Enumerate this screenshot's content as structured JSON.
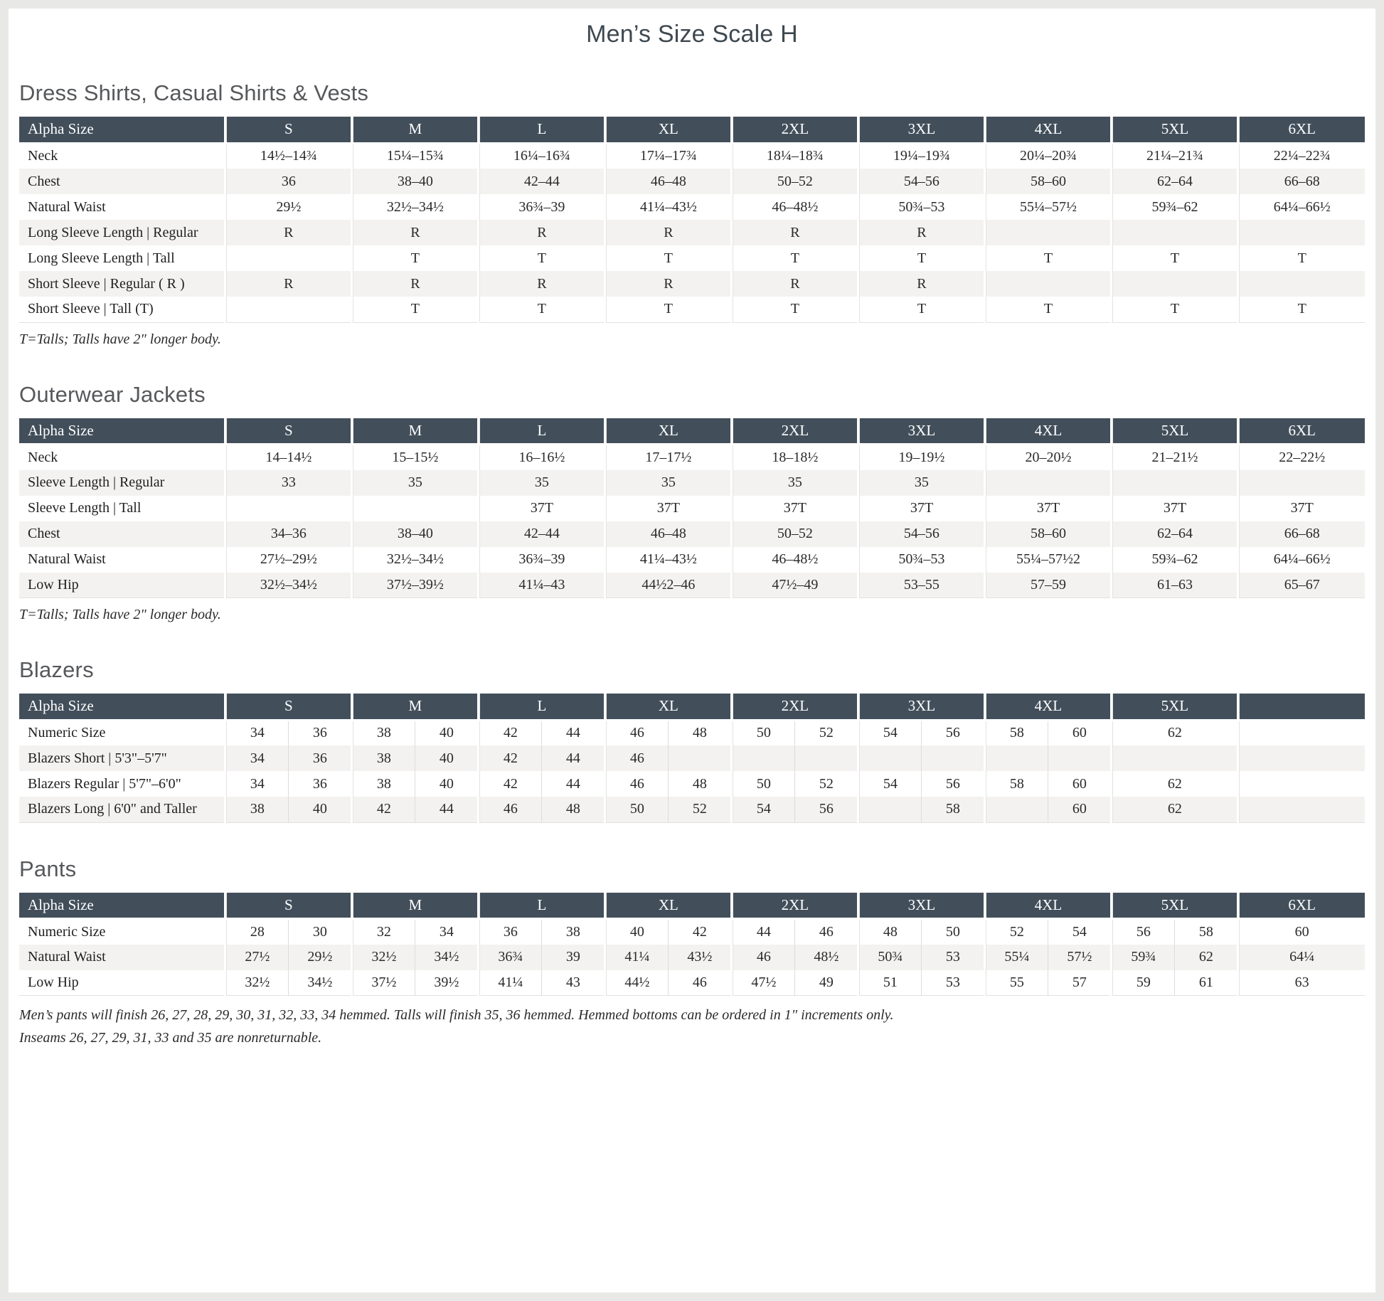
{
  "page": {
    "title": "Men’s Size Scale H"
  },
  "theme": {
    "header_bg": "#424f5b",
    "row_alt": "#f3f2f0",
    "frame_color": "#e8e8e7",
    "title_color": "#3e4850",
    "heading_color": "#56585b"
  },
  "tables": [
    {
      "id": "dress-shirts",
      "heading": "Dress Shirts, Casual Shirts & Vests",
      "split": false,
      "columns": [
        "Alpha Size",
        "S",
        "M",
        "L",
        "XL",
        "2XL",
        "3XL",
        "4XL",
        "5XL",
        "6XL"
      ],
      "rows": [
        {
          "label": "Neck",
          "values": [
            "14½–14¾",
            "15¼–15¾",
            "16¼–16¾",
            "17¼–17¾",
            "18¼–18¾",
            "19¼–19¾",
            "20¼–20¾",
            "21¼–21¾",
            "22¼–22¾"
          ]
        },
        {
          "label": "Chest",
          "values": [
            "36",
            "38–40",
            "42–44",
            "46–48",
            "50–52",
            "54–56",
            "58–60",
            "62–64",
            "66–68"
          ]
        },
        {
          "label": "Natural Waist",
          "values": [
            "29½",
            "32½–34½",
            "36¾–39",
            "41¼–43½",
            "46–48½",
            "50¾–53",
            "55¼–57½",
            "59¾–62",
            "64¼–66½"
          ]
        },
        {
          "label": "Long Sleeve Length | Regular",
          "values": [
            "R",
            "R",
            "R",
            "R",
            "R",
            "R",
            "",
            "",
            ""
          ]
        },
        {
          "label": "Long Sleeve Length | Tall",
          "values": [
            "",
            "T",
            "T",
            "T",
            "T",
            "T",
            "T",
            "T",
            "T"
          ]
        },
        {
          "label": "Short Sleeve | Regular ( R )",
          "values": [
            "R",
            "R",
            "R",
            "R",
            "R",
            "R",
            "",
            "",
            ""
          ]
        },
        {
          "label": "Short Sleeve | Tall (T)",
          "values": [
            "",
            "T",
            "T",
            "T",
            "T",
            "T",
            "T",
            "T",
            "T"
          ]
        }
      ],
      "footnotes": [
        "T=Talls; Talls have 2\" longer body."
      ]
    },
    {
      "id": "outerwear-jackets",
      "heading": "Outerwear Jackets",
      "split": false,
      "columns": [
        "Alpha Size",
        "S",
        "M",
        "L",
        "XL",
        "2XL",
        "3XL",
        "4XL",
        "5XL",
        "6XL"
      ],
      "rows": [
        {
          "label": "Neck",
          "values": [
            "14–14½",
            "15–15½",
            "16–16½",
            "17–17½",
            "18–18½",
            "19–19½",
            "20–20½",
            "21–21½",
            "22–22½"
          ]
        },
        {
          "label": "Sleeve Length | Regular",
          "values": [
            "33",
            "35",
            "35",
            "35",
            "35",
            "35",
            "",
            "",
            ""
          ]
        },
        {
          "label": "Sleeve Length | Tall",
          "values": [
            "",
            "",
            "37T",
            "37T",
            "37T",
            "37T",
            "37T",
            "37T",
            "37T"
          ]
        },
        {
          "label": "Chest",
          "values": [
            "34–36",
            "38–40",
            "42–44",
            "46–48",
            "50–52",
            "54–56",
            "58–60",
            "62–64",
            "66–68"
          ]
        },
        {
          "label": "Natural Waist",
          "values": [
            "27½–29½",
            "32½–34½",
            "36¾–39",
            "41¼–43½",
            "46–48½",
            "50¾–53",
            "55¼–57½2",
            "59¾–62",
            "64¼–66½"
          ]
        },
        {
          "label": "Low Hip",
          "values": [
            "32½–34½",
            "37½–39½",
            "41¼–43",
            "44½2–46",
            "47½–49",
            "53–55",
            "57–59",
            "61–63",
            "65–67"
          ]
        }
      ],
      "footnotes": [
        "T=Talls; Talls have 2\" longer body."
      ]
    },
    {
      "id": "blazers",
      "heading": "Blazers",
      "split": true,
      "columns": [
        "Alpha Size",
        "S",
        "M",
        "L",
        "XL",
        "2XL",
        "3XL",
        "4XL",
        "5XL",
        ""
      ],
      "rows": [
        {
          "label": "Numeric Size",
          "pairs": [
            [
              "34",
              "36"
            ],
            [
              "38",
              "40"
            ],
            [
              "42",
              "44"
            ],
            [
              "46",
              "48"
            ],
            [
              "50",
              "52"
            ],
            [
              "54",
              "56"
            ],
            [
              "58",
              "60"
            ],
            [
              "62"
            ],
            [
              ""
            ]
          ]
        },
        {
          "label": "Blazers Short | 5'3\"–5'7\"",
          "pairs": [
            [
              "34",
              "36"
            ],
            [
              "38",
              "40"
            ],
            [
              "42",
              "44"
            ],
            [
              "46",
              ""
            ],
            [
              "",
              ""
            ],
            [
              "",
              ""
            ],
            [
              "",
              ""
            ],
            [
              ""
            ],
            [
              ""
            ]
          ]
        },
        {
          "label": "Blazers Regular | 5'7\"–6'0\"",
          "pairs": [
            [
              "34",
              "36"
            ],
            [
              "38",
              "40"
            ],
            [
              "42",
              "44"
            ],
            [
              "46",
              "48"
            ],
            [
              "50",
              "52"
            ],
            [
              "54",
              "56"
            ],
            [
              "58",
              "60"
            ],
            [
              "62"
            ],
            [
              ""
            ]
          ]
        },
        {
          "label": "Blazers Long | 6'0\" and Taller",
          "pairs": [
            [
              "38",
              "40"
            ],
            [
              "42",
              "44"
            ],
            [
              "46",
              "48"
            ],
            [
              "50",
              "52"
            ],
            [
              "54",
              "56"
            ],
            [
              "",
              "58"
            ],
            [
              "",
              "60"
            ],
            [
              "62"
            ],
            [
              ""
            ]
          ]
        }
      ],
      "footnotes": []
    },
    {
      "id": "pants",
      "heading": "Pants",
      "split": true,
      "columns": [
        "Alpha Size",
        "S",
        "M",
        "L",
        "XL",
        "2XL",
        "3XL",
        "4XL",
        "5XL",
        "6XL"
      ],
      "rows": [
        {
          "label": "Numeric Size",
          "pairs": [
            [
              "28",
              "30"
            ],
            [
              "32",
              "34"
            ],
            [
              "36",
              "38"
            ],
            [
              "40",
              "42"
            ],
            [
              "44",
              "46"
            ],
            [
              "48",
              "50"
            ],
            [
              "52",
              "54"
            ],
            [
              "56",
              "58"
            ],
            [
              "60"
            ]
          ]
        },
        {
          "label": "Natural Waist",
          "pairs": [
            [
              "27½",
              "29½"
            ],
            [
              "32½",
              "34½"
            ],
            [
              "36¾",
              "39"
            ],
            [
              "41¼",
              "43½"
            ],
            [
              "46",
              "48½"
            ],
            [
              "50¾",
              "53"
            ],
            [
              "55¼",
              "57½"
            ],
            [
              "59¾",
              "62"
            ],
            [
              "64¼"
            ]
          ]
        },
        {
          "label": "Low Hip",
          "pairs": [
            [
              "32½",
              "34½"
            ],
            [
              "37½",
              "39½"
            ],
            [
              "41¼",
              "43"
            ],
            [
              "44½",
              "46"
            ],
            [
              "47½",
              "49"
            ],
            [
              "51",
              "53"
            ],
            [
              "55",
              "57"
            ],
            [
              "59",
              "61"
            ],
            [
              "63"
            ]
          ]
        }
      ],
      "footnotes": [
        "Men’s pants will finish 26, 27, 28, 29, 30, 31, 32, 33, 34 hemmed. Talls will finish 35, 36 hemmed. Hemmed bottoms can be ordered in 1\" increments only.",
        "Inseams 26, 27, 29, 31, 33 and 35 are nonreturnable."
      ],
      "notes_class": "pants-notes"
    }
  ]
}
